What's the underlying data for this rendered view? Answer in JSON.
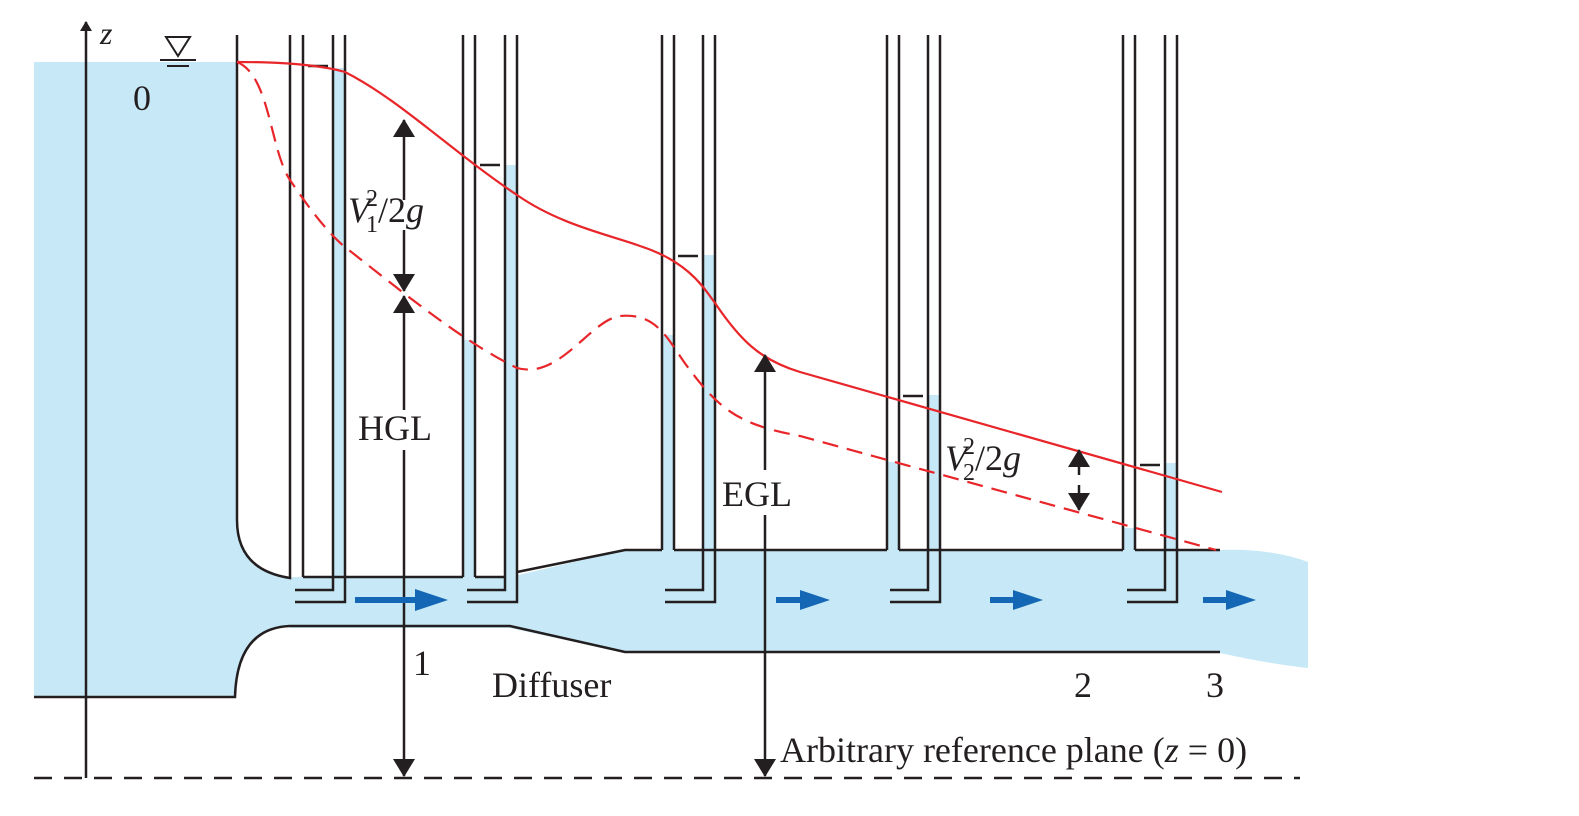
{
  "labels": {
    "z_axis": "z",
    "station_0": "0",
    "station_1": "1",
    "station_2": "2",
    "station_3": "3",
    "diffuser": "Diffuser",
    "hgl": "HGL",
    "egl": "EGL",
    "velocity_head_1": {
      "V": "V",
      "sub": "1",
      "sup": "2",
      "rest": "/2",
      "g": "g"
    },
    "velocity_head_2": {
      "V": "V",
      "sub": "2",
      "sup": "2",
      "rest": "/2",
      "g": "g"
    },
    "reference_plane": {
      "prefix": "Arbitrary reference plane (",
      "z": "z",
      "suffix": " = 0)"
    }
  },
  "colors": {
    "water": "#c7e8f6",
    "energy_line": "#e8262a",
    "flow_arrow": "#1467b4",
    "outline": "#231f20"
  },
  "icons": {
    "free_surface": "inverted-triangle-icon",
    "flow_direction": "blue-arrow-icon"
  }
}
